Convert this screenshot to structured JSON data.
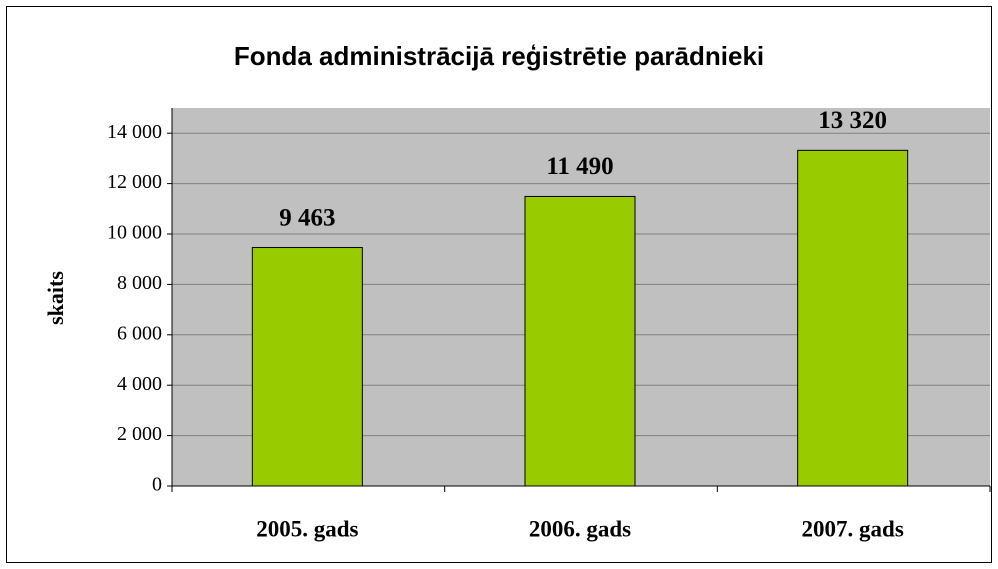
{
  "chart_data": {
    "type": "bar",
    "title": "Fonda administrācijā reģistrētie parādnieki",
    "y_label": "skaits",
    "categories": [
      "2005. gads",
      "2006. gads",
      "2007. gads"
    ],
    "values": [
      9463,
      11490,
      13320
    ],
    "value_labels": [
      "9 463",
      "11 490",
      "13 320"
    ],
    "color": "#99cc00",
    "ylim": [
      0,
      15000
    ],
    "yticks": [
      0,
      {
        "value": 2000,
        "label": "2 000"
      },
      {
        "value": 4000,
        "label": "4 000"
      },
      {
        "value": 6000,
        "label": "6 000"
      },
      {
        "value": 8000,
        "label": "8 000"
      },
      {
        "value": 10000,
        "label": "10 000"
      },
      {
        "value": 12000,
        "label": "12 000"
      },
      {
        "value": 14000,
        "label": "14 000"
      }
    ],
    "grid": true
  }
}
